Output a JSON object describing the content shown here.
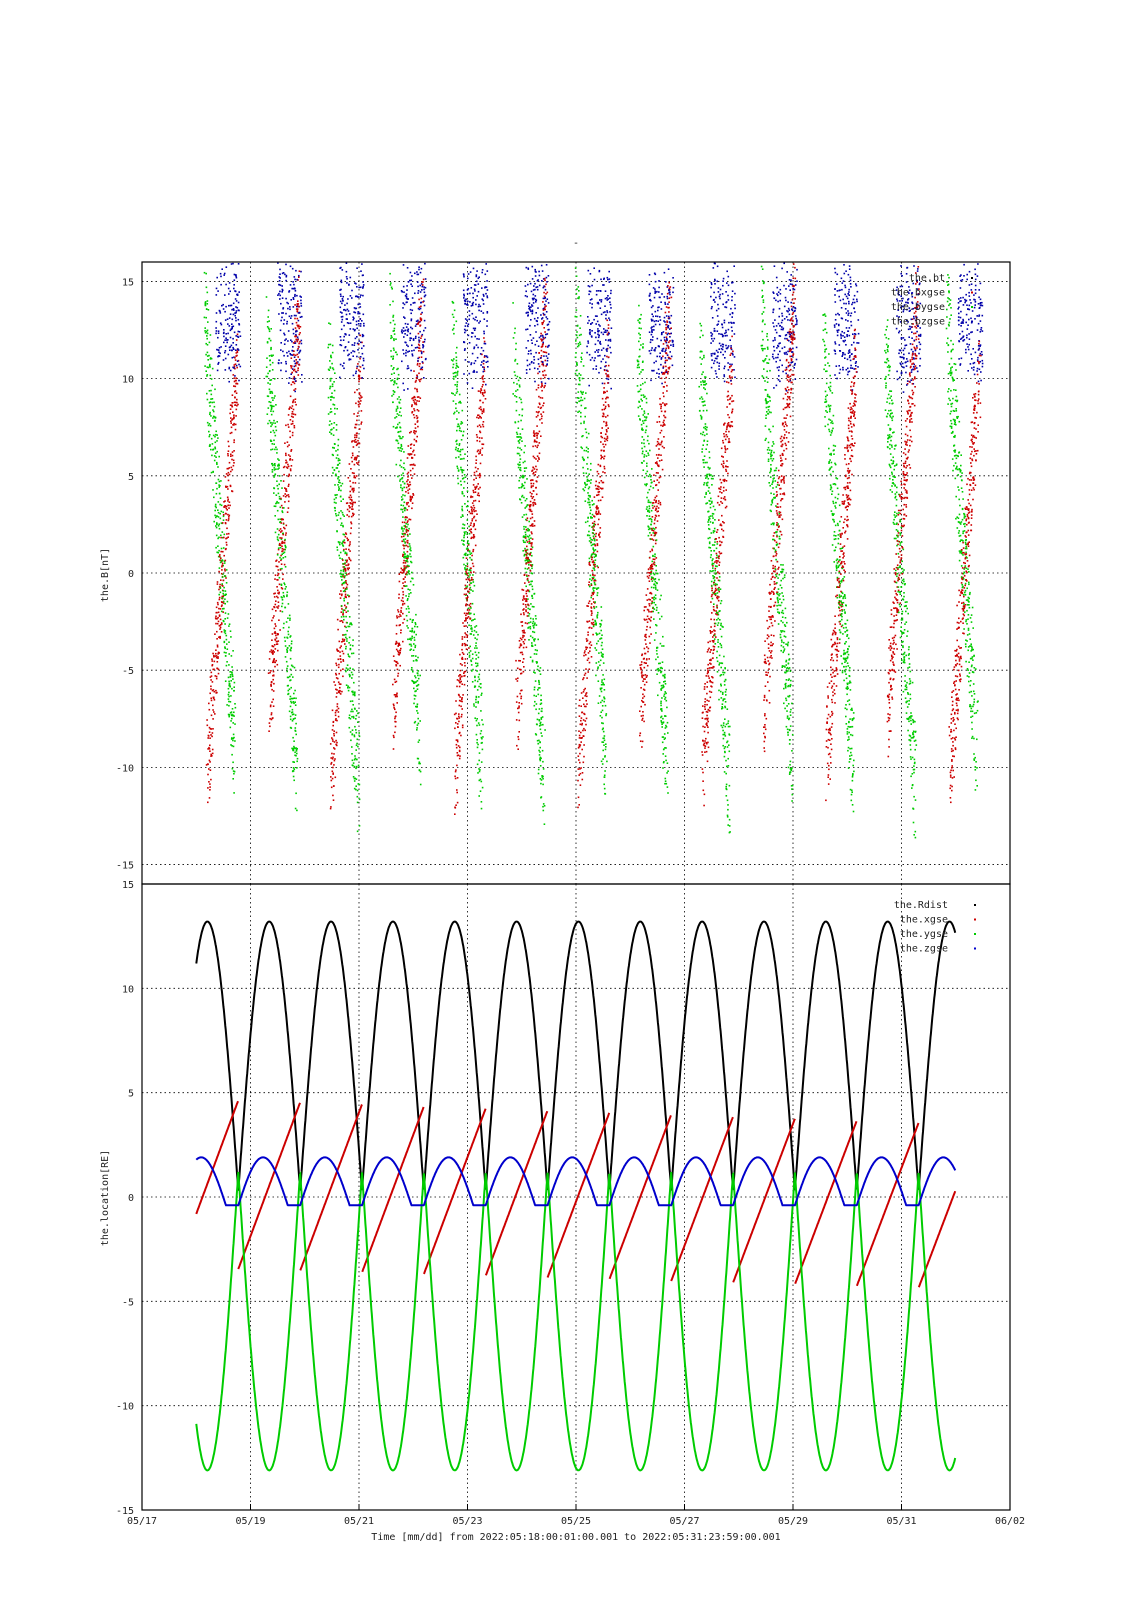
{
  "chart_data": [
    {
      "type": "scatter",
      "title": "-",
      "ylabel": "the.B[nT]",
      "ylim": [
        -16,
        16
      ],
      "yticks": [
        15,
        10,
        5,
        0,
        -5,
        -10,
        -15
      ],
      "xlim": [
        "05/17",
        "06/02"
      ],
      "grid": true,
      "legend_position": "top-right",
      "series": [
        {
          "name": "the.bt",
          "color": "#000000"
        },
        {
          "name": "the.bxgse",
          "color": "#cc0000"
        },
        {
          "name": "the.bygse",
          "color": "#00cc00"
        },
        {
          "name": "the.bzgse",
          "color": "#0000aa"
        }
      ]
    },
    {
      "type": "line",
      "ylabel": "the.location[RE]",
      "ylim": [
        -15,
        15
      ],
      "yticks": [
        15,
        10,
        5,
        0,
        -5,
        -10,
        -15
      ],
      "x": [
        "05/17",
        "05/19",
        "05/21",
        "05/23",
        "05/25",
        "05/27",
        "05/29",
        "05/31",
        "06/02"
      ],
      "xlabel": "Time [mm/dd]  from 2022:05:18:00:01:00.001  to  2022:05:31:23:59:00.001",
      "grid": true,
      "legend_position": "top-right",
      "orbit_period_days": 1.14,
      "series": [
        {
          "name": "the.Rdist",
          "color": "#000000",
          "min": 0.3,
          "max": 13.2
        },
        {
          "name": "the.xgse",
          "color": "#cc0000",
          "start": -2.2,
          "end": -0.9,
          "peak_first": 4.7,
          "peak_last": 3.5,
          "trough_first": -3.4,
          "trough_last": -4.4
        },
        {
          "name": "the.ygse",
          "color": "#00cc00",
          "start": -9.8,
          "min": -13.1,
          "max": 1.2
        },
        {
          "name": "the.zgse",
          "color": "#0000cc",
          "min": -0.4,
          "max": 1.9
        }
      ]
    }
  ]
}
